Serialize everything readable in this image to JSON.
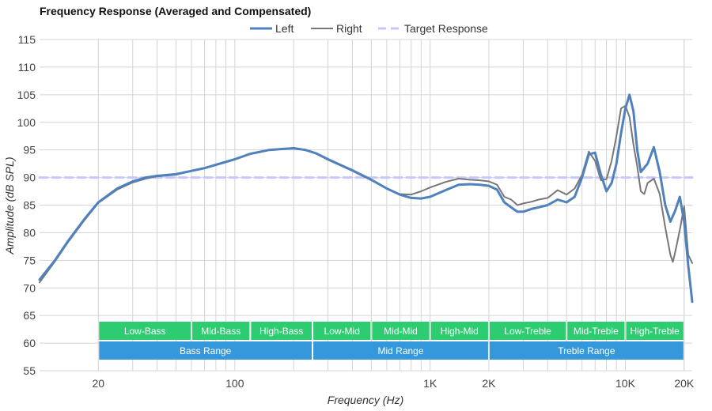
{
  "chart_data": {
    "type": "line",
    "title": "Frequency Response (Averaged and Compensated)",
    "xlabel": "Frequency (Hz)",
    "ylabel": "Amplitude (dB SPL)",
    "x_scale": "log",
    "xlim": [
      10,
      22000
    ],
    "ylim": [
      55,
      115
    ],
    "y_ticks": [
      55,
      60,
      65,
      70,
      75,
      80,
      85,
      90,
      95,
      100,
      105,
      110,
      115
    ],
    "x_ticks": [
      {
        "value": 20,
        "label": "20"
      },
      {
        "value": 100,
        "label": "100"
      },
      {
        "value": 1000,
        "label": "1K"
      },
      {
        "value": 2000,
        "label": "2K"
      },
      {
        "value": 10000,
        "label": "10K"
      },
      {
        "value": 20000,
        "label": "20K"
      }
    ],
    "grid": true,
    "legend": {
      "position": "top-center"
    },
    "series": [
      {
        "name": "Left",
        "color": "#4f81bd",
        "style": "solid",
        "points": [
          [
            10,
            71.5
          ],
          [
            12,
            75
          ],
          [
            14,
            78.5
          ],
          [
            17,
            82.5
          ],
          [
            20,
            85.5
          ],
          [
            25,
            88
          ],
          [
            30,
            89.3
          ],
          [
            35,
            90
          ],
          [
            40,
            90.3
          ],
          [
            50,
            90.6
          ],
          [
            60,
            91.2
          ],
          [
            70,
            91.7
          ],
          [
            80,
            92.3
          ],
          [
            100,
            93.3
          ],
          [
            120,
            94.3
          ],
          [
            150,
            95
          ],
          [
            180,
            95.2
          ],
          [
            200,
            95.3
          ],
          [
            230,
            95
          ],
          [
            260,
            94.4
          ],
          [
            300,
            93.3
          ],
          [
            400,
            91.3
          ],
          [
            500,
            89.6
          ],
          [
            600,
            88
          ],
          [
            700,
            86.9
          ],
          [
            800,
            86.3
          ],
          [
            900,
            86.2
          ],
          [
            1000,
            86.5
          ],
          [
            1200,
            87.7
          ],
          [
            1400,
            88.7
          ],
          [
            1600,
            88.8
          ],
          [
            1800,
            88.7
          ],
          [
            2000,
            88.5
          ],
          [
            2200,
            87.8
          ],
          [
            2400,
            85.5
          ],
          [
            2600,
            84.6
          ],
          [
            2800,
            83.8
          ],
          [
            3000,
            83.8
          ],
          [
            3300,
            84.3
          ],
          [
            3600,
            84.6
          ],
          [
            4000,
            85
          ],
          [
            4500,
            86
          ],
          [
            5000,
            85.5
          ],
          [
            5500,
            86.5
          ],
          [
            6000,
            90
          ],
          [
            6500,
            94.2
          ],
          [
            7000,
            94.5
          ],
          [
            7500,
            90.5
          ],
          [
            8000,
            87.5
          ],
          [
            8500,
            89
          ],
          [
            9000,
            92.5
          ],
          [
            9500,
            98
          ],
          [
            10000,
            102.5
          ],
          [
            10500,
            105
          ],
          [
            11000,
            102
          ],
          [
            11500,
            95
          ],
          [
            12000,
            91
          ],
          [
            13000,
            92.5
          ],
          [
            14000,
            95.5
          ],
          [
            15000,
            91
          ],
          [
            16000,
            85
          ],
          [
            17000,
            82
          ],
          [
            18000,
            84
          ],
          [
            19000,
            86.5
          ],
          [
            20000,
            82
          ],
          [
            21000,
            74
          ],
          [
            22000,
            67.5
          ]
        ]
      },
      {
        "name": "Right",
        "color": "#777777",
        "style": "solid",
        "points": [
          [
            10,
            71
          ],
          [
            12,
            74.8
          ],
          [
            14,
            78.3
          ],
          [
            17,
            82.3
          ],
          [
            20,
            85.4
          ],
          [
            25,
            87.8
          ],
          [
            30,
            89.1
          ],
          [
            35,
            89.8
          ],
          [
            40,
            90.2
          ],
          [
            50,
            90.5
          ],
          [
            60,
            91.2
          ],
          [
            70,
            91.7
          ],
          [
            80,
            92.3
          ],
          [
            100,
            93.3
          ],
          [
            120,
            94.3
          ],
          [
            150,
            95
          ],
          [
            180,
            95.2
          ],
          [
            200,
            95.4
          ],
          [
            230,
            95
          ],
          [
            260,
            94.4
          ],
          [
            300,
            93.2
          ],
          [
            400,
            91.2
          ],
          [
            500,
            89.5
          ],
          [
            600,
            88
          ],
          [
            700,
            87
          ],
          [
            800,
            86.9
          ],
          [
            900,
            87.5
          ],
          [
            1000,
            88.2
          ],
          [
            1200,
            89.2
          ],
          [
            1400,
            89.8
          ],
          [
            1600,
            89.6
          ],
          [
            1800,
            89.5
          ],
          [
            2000,
            89.3
          ],
          [
            2200,
            88.7
          ],
          [
            2400,
            86.5
          ],
          [
            2600,
            86
          ],
          [
            2800,
            85
          ],
          [
            3000,
            85.3
          ],
          [
            3300,
            85.6
          ],
          [
            3600,
            86
          ],
          [
            4000,
            86.3
          ],
          [
            4500,
            87.7
          ],
          [
            5000,
            86.9
          ],
          [
            5500,
            88
          ],
          [
            6000,
            90.5
          ],
          [
            6500,
            94.7
          ],
          [
            7000,
            93
          ],
          [
            7500,
            89.5
          ],
          [
            8000,
            89.7
          ],
          [
            8500,
            93
          ],
          [
            9000,
            97.5
          ],
          [
            9500,
            102.5
          ],
          [
            10000,
            103
          ],
          [
            10500,
            101
          ],
          [
            11000,
            96
          ],
          [
            11500,
            92
          ],
          [
            12000,
            87.5
          ],
          [
            12500,
            87
          ],
          [
            13000,
            89
          ],
          [
            14000,
            89.8
          ],
          [
            15000,
            87
          ],
          [
            16000,
            81
          ],
          [
            17000,
            76
          ],
          [
            17500,
            74.7
          ],
          [
            18000,
            76.5
          ],
          [
            19000,
            80.5
          ],
          [
            20000,
            84.8
          ],
          [
            21000,
            76
          ],
          [
            22000,
            74.5
          ]
        ]
      },
      {
        "name": "Target Response",
        "color": "#c5c8ff",
        "style": "dashed",
        "points": [
          [
            10,
            90
          ],
          [
            22000,
            90
          ]
        ]
      }
    ],
    "bands": [
      {
        "row": 1,
        "label": "Low-Bass",
        "from": 20,
        "to": 60,
        "color": "#2ecc71"
      },
      {
        "row": 1,
        "label": "Mid-Bass",
        "from": 60,
        "to": 120,
        "color": "#2ecc71"
      },
      {
        "row": 1,
        "label": "High-Bass",
        "from": 120,
        "to": 250,
        "color": "#2ecc71"
      },
      {
        "row": 1,
        "label": "Low-Mid",
        "from": 250,
        "to": 500,
        "color": "#2ecc71"
      },
      {
        "row": 1,
        "label": "Mid-Mid",
        "from": 500,
        "to": 1000,
        "color": "#2ecc71"
      },
      {
        "row": 1,
        "label": "High-Mid",
        "from": 1000,
        "to": 2000,
        "color": "#2ecc71"
      },
      {
        "row": 1,
        "label": "Low-Treble",
        "from": 2000,
        "to": 5000,
        "color": "#2ecc71"
      },
      {
        "row": 1,
        "label": "Mid-Treble",
        "from": 5000,
        "to": 10000,
        "color": "#2ecc71"
      },
      {
        "row": 1,
        "label": "High-Treble",
        "from": 10000,
        "to": 20000,
        "color": "#2ecc71"
      },
      {
        "row": 2,
        "label": "Bass Range",
        "from": 20,
        "to": 250,
        "color": "#3498db"
      },
      {
        "row": 2,
        "label": "Mid Range",
        "from": 250,
        "to": 2000,
        "color": "#3498db"
      },
      {
        "row": 2,
        "label": "Treble Range",
        "from": 2000,
        "to": 20000,
        "color": "#3498db"
      }
    ]
  }
}
